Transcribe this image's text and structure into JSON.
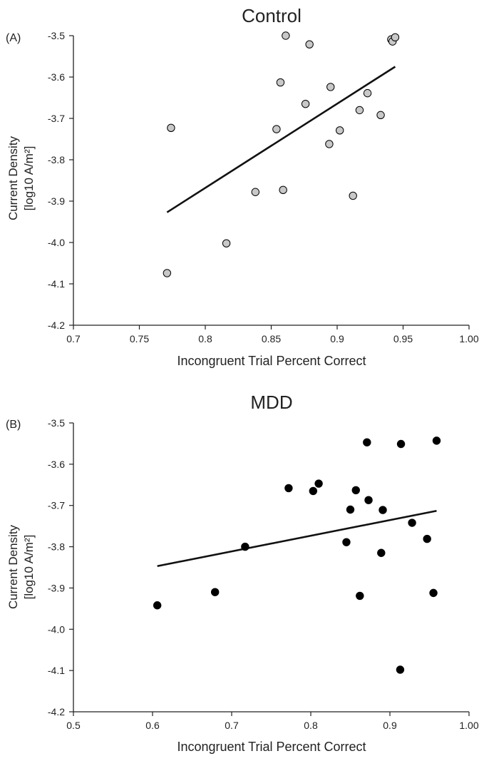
{
  "chart_data": [
    {
      "type": "scatter",
      "panel_label": "(A)",
      "title": "Control",
      "xlabel": "Incongruent Trial Percent Correct",
      "ylabel_line1": "Current Density",
      "ylabel_line2": "[log10 A/m²]",
      "xlim": [
        0.7,
        1.0
      ],
      "ylim": [
        -4.2,
        -3.5
      ],
      "x_ticks": [
        "0.7",
        "0.75",
        "0.8",
        "0.85",
        "0.9",
        "0.95",
        "1.00"
      ],
      "x_tick_values": [
        0.7,
        0.75,
        0.8,
        0.85,
        0.9,
        0.95,
        1.0
      ],
      "y_ticks": [
        "-3.5",
        "-3.6",
        "-3.7",
        "-3.8",
        "-3.9",
        "-4.0",
        "-4.1",
        "-4.2"
      ],
      "y_tick_values": [
        -3.5,
        -3.6,
        -3.7,
        -3.8,
        -3.9,
        -4.0,
        -4.1,
        -4.2
      ],
      "marker_color": "#c8c8c8",
      "points": [
        {
          "x": 0.771,
          "y": -4.074
        },
        {
          "x": 0.774,
          "y": -3.723
        },
        {
          "x": 0.816,
          "y": -4.002
        },
        {
          "x": 0.838,
          "y": -3.878
        },
        {
          "x": 0.854,
          "y": -3.726
        },
        {
          "x": 0.857,
          "y": -3.613
        },
        {
          "x": 0.859,
          "y": -3.873
        },
        {
          "x": 0.861,
          "y": -3.5
        },
        {
          "x": 0.876,
          "y": -3.665
        },
        {
          "x": 0.879,
          "y": -3.521
        },
        {
          "x": 0.894,
          "y": -3.762
        },
        {
          "x": 0.895,
          "y": -3.624
        },
        {
          "x": 0.902,
          "y": -3.729
        },
        {
          "x": 0.912,
          "y": -3.887
        },
        {
          "x": 0.917,
          "y": -3.68
        },
        {
          "x": 0.923,
          "y": -3.639
        },
        {
          "x": 0.933,
          "y": -3.692
        },
        {
          "x": 0.941,
          "y": -3.509
        },
        {
          "x": 0.942,
          "y": -3.514
        },
        {
          "x": 0.944,
          "y": -3.504
        }
      ],
      "fit_line": {
        "x": [
          0.771,
          0.944
        ],
        "y": [
          -3.927,
          -3.575
        ]
      }
    },
    {
      "type": "scatter",
      "panel_label": "(B)",
      "title": "MDD",
      "xlabel": "Incongruent Trial Percent Correct",
      "ylabel_line1": "Current Density",
      "ylabel_line2": "[log10 A/m²]",
      "xlim": [
        0.5,
        1.0
      ],
      "ylim": [
        -4.2,
        -3.5
      ],
      "x_ticks": [
        "0.5",
        "0.6",
        "0.7",
        "0.8",
        "0.9",
        "1.00"
      ],
      "x_tick_values": [
        0.5,
        0.6,
        0.7,
        0.8,
        0.9,
        1.0
      ],
      "y_ticks": [
        "-3.5",
        "-3.6",
        "-3.7",
        "-3.8",
        "-3.9",
        "-4.0",
        "-4.1",
        "-4.2"
      ],
      "y_tick_values": [
        -3.5,
        -3.6,
        -3.7,
        -3.8,
        -3.9,
        -4.0,
        -4.1,
        -4.2
      ],
      "marker_color": "#000000",
      "points": [
        {
          "x": 0.606,
          "y": -3.942
        },
        {
          "x": 0.679,
          "y": -3.91
        },
        {
          "x": 0.717,
          "y": -3.8
        },
        {
          "x": 0.772,
          "y": -3.658
        },
        {
          "x": 0.803,
          "y": -3.665
        },
        {
          "x": 0.81,
          "y": -3.647
        },
        {
          "x": 0.845,
          "y": -3.789
        },
        {
          "x": 0.85,
          "y": -3.71
        },
        {
          "x": 0.857,
          "y": -3.663
        },
        {
          "x": 0.862,
          "y": -3.919
        },
        {
          "x": 0.871,
          "y": -3.547
        },
        {
          "x": 0.873,
          "y": -3.687
        },
        {
          "x": 0.889,
          "y": -3.815
        },
        {
          "x": 0.891,
          "y": -3.711
        },
        {
          "x": 0.913,
          "y": -4.098
        },
        {
          "x": 0.914,
          "y": -3.551
        },
        {
          "x": 0.928,
          "y": -3.742
        },
        {
          "x": 0.947,
          "y": -3.781
        },
        {
          "x": 0.955,
          "y": -3.912
        },
        {
          "x": 0.959,
          "y": -3.543
        }
      ],
      "fit_line": {
        "x": [
          0.606,
          0.959
        ],
        "y": [
          -3.847,
          -3.713
        ]
      }
    }
  ]
}
